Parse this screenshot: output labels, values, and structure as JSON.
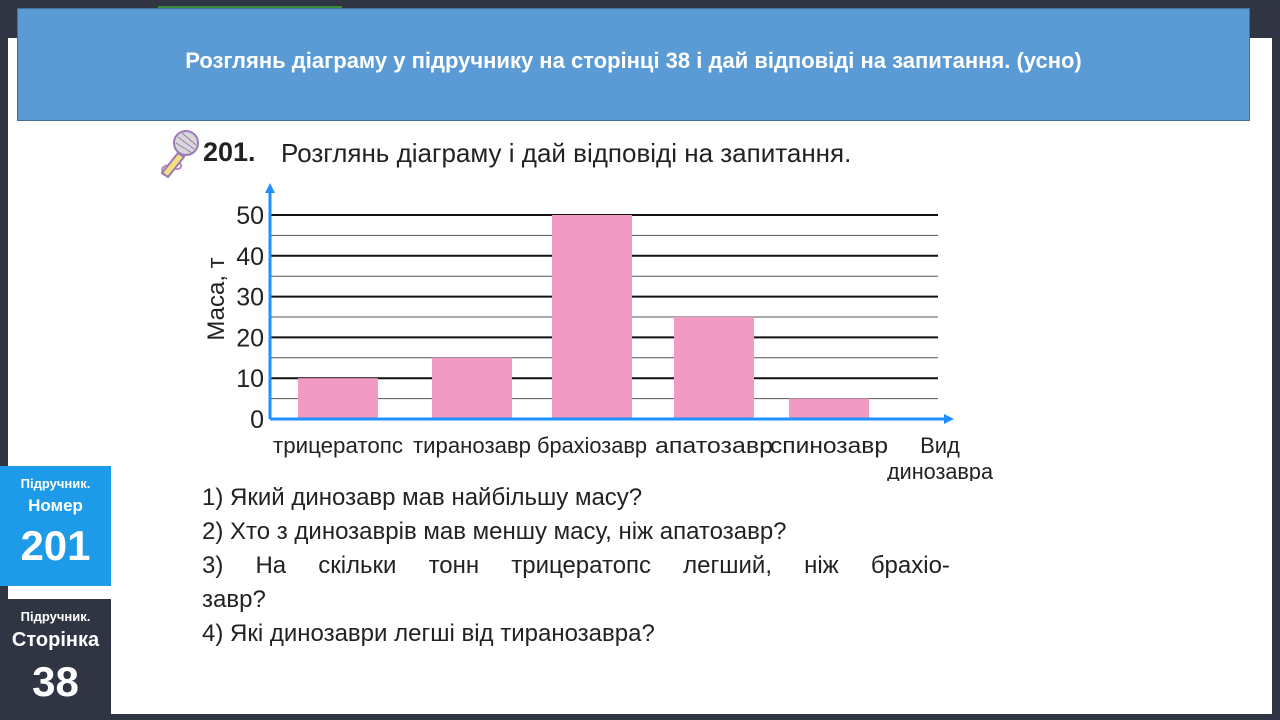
{
  "header": {
    "title": "Розглянь діаграму у підручнику на сторінці 38 і дай відповіді на запитання. (усно)"
  },
  "task": {
    "number": "201.",
    "text": "Розглянь діаграму і дай відповіді на запитання."
  },
  "chart_data": {
    "type": "bar",
    "categories": [
      "трицератопс",
      "тиранозавр",
      "брахіозавр",
      "апатозавр",
      "спинозавр"
    ],
    "values": [
      10,
      15,
      50,
      25,
      5
    ],
    "ylabel": "Маса, т",
    "xlabel": [
      "Вид",
      "динозавра"
    ],
    "ylim": [
      0,
      50
    ],
    "yticks": [
      0,
      10,
      20,
      30,
      40,
      50
    ],
    "grid": true,
    "bar_color": "#f19ac4"
  },
  "questions": [
    "1) Який динозавр мав найбільшу масу?",
    "2) Хто з динозаврів мав меншу масу, ніж апатозавр?",
    "3) На скільки тонн трицератопс легший, ніж брахіо-",
    "завр?",
    "4) Які динозаври легші від тиранозавра?"
  ],
  "badges": {
    "number": {
      "label": "Підручник.",
      "sub": "Номер",
      "value": "201"
    },
    "page": {
      "label": "Підручник.",
      "sub": "Сторінка",
      "value": "38"
    }
  },
  "colors": {
    "banner": "#5b9bd5",
    "badge_blue": "#1e9be8",
    "axis": "#1e90ff",
    "background": "#2f3542"
  }
}
